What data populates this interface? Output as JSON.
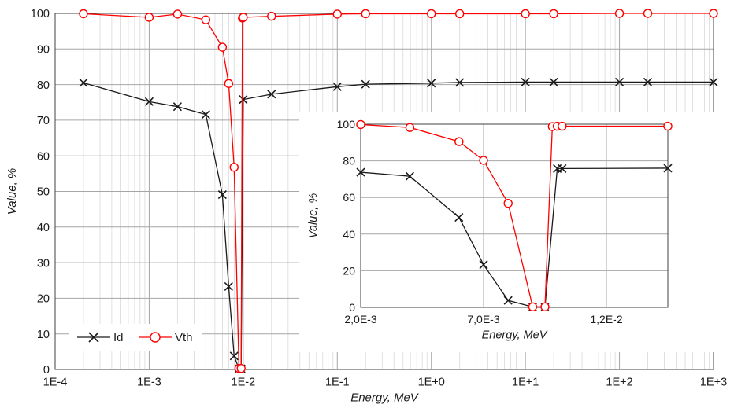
{
  "colors": {
    "id": "#1a1a1a",
    "vth": "#ff0000",
    "grid": "#bfbfbf",
    "axis": "#404040"
  },
  "chart_data": [
    {
      "type": "scatter",
      "title": "",
      "xlabel": "Energy, MeV",
      "ylabel": "Value, %",
      "xscale": "log",
      "xlim": [
        0.0001,
        1000
      ],
      "ylim": [
        0,
        100
      ],
      "xticks": [
        "1E-4",
        "1E-3",
        "1E-2",
        "1E-1",
        "1E+0",
        "1E+1",
        "1E+2",
        "1E+3"
      ],
      "yticks": [
        "0",
        "10",
        "20",
        "30",
        "40",
        "50",
        "60",
        "70",
        "80",
        "90",
        "100"
      ],
      "grid": true,
      "legend_position": "bottom-left",
      "series": [
        {
          "name": "Id",
          "marker": "x",
          "color": "#1a1a1a",
          "x": [
            0.0002,
            0.001,
            0.002,
            0.004,
            0.006,
            0.007,
            0.008,
            0.009,
            0.0095,
            0.01,
            0.02,
            0.1,
            0.2,
            1,
            2,
            10,
            20,
            100,
            200,
            1000
          ],
          "y": [
            80.5,
            75.2,
            73.8,
            71.6,
            49.1,
            23.3,
            3.8,
            0.2,
            0.2,
            75.8,
            77.3,
            79.4,
            80.1,
            80.4,
            80.6,
            80.7,
            80.7,
            80.7,
            80.7,
            80.7
          ]
        },
        {
          "name": "Vth",
          "marker": "o",
          "color": "#ff0000",
          "x": [
            0.0002,
            0.001,
            0.002,
            0.004,
            0.006,
            0.007,
            0.008,
            0.009,
            0.0095,
            0.0098,
            0.01,
            0.02,
            0.1,
            0.2,
            1,
            2,
            10,
            20,
            100,
            200,
            1000
          ],
          "y": [
            99.9,
            98.9,
            99.8,
            98.2,
            90.5,
            80.3,
            56.8,
            0.3,
            0.3,
            98.7,
            98.9,
            99.2,
            99.8,
            99.9,
            99.9,
            99.9,
            99.9,
            99.9,
            100,
            100,
            100
          ]
        }
      ]
    },
    {
      "type": "scatter",
      "title": "",
      "xlabel": "Energy, MeV",
      "ylabel": "Value, %",
      "xscale": "linear",
      "xlim": [
        0.002,
        0.0145
      ],
      "ylim": [
        0,
        100
      ],
      "xticks": [
        "2,0E-3",
        "7,0E-3",
        "1,2E-2"
      ],
      "yticks": [
        "0",
        "20",
        "40",
        "60",
        "80",
        "100"
      ],
      "grid": true,
      "series": [
        {
          "name": "Id",
          "marker": "x",
          "color": "#1a1a1a",
          "x": [
            0.002,
            0.004,
            0.006,
            0.007,
            0.008,
            0.009,
            0.0095,
            0.01,
            0.0102,
            0.0145
          ],
          "y": [
            73.8,
            71.6,
            49.1,
            23.3,
            3.8,
            0.2,
            0.2,
            75.8,
            75.8,
            76
          ]
        },
        {
          "name": "Vth",
          "marker": "o",
          "color": "#ff0000",
          "x": [
            0.002,
            0.004,
            0.006,
            0.007,
            0.008,
            0.009,
            0.0095,
            0.0098,
            0.01,
            0.0102,
            0.0145
          ],
          "y": [
            99.8,
            98.2,
            90.5,
            80.3,
            56.8,
            0.3,
            0.3,
            98.7,
            98.9,
            98.9,
            98.9
          ]
        }
      ]
    }
  ]
}
